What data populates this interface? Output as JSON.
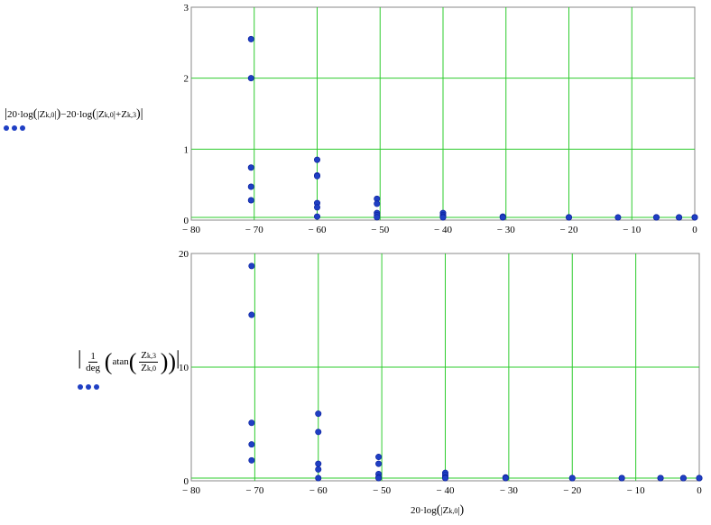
{
  "chart_data": [
    {
      "type": "scatter",
      "title": "",
      "ylabel_text": {
        "p1": "20·log",
        "z1": "Z",
        "z1_sub": "k,0",
        "p2": "−20·log",
        "z2": "Z",
        "z2_sub": "k,0",
        "plus": "+",
        "z3": "Z",
        "z3_sub": "k,3"
      },
      "xlim": [
        -80,
        0
      ],
      "ylim": [
        0,
        3
      ],
      "xticks": [
        -80,
        -70,
        -60,
        -50,
        -40,
        -30,
        -20,
        -10,
        0
      ],
      "xtick_labels": [
        "− 80",
        "− 70",
        "− 60",
        "− 50",
        "− 40",
        "− 30",
        "− 20",
        "− 10",
        "0"
      ],
      "yticks": [
        0,
        1,
        2,
        3
      ],
      "ytick_labels": [
        "0",
        "1",
        "2",
        "3"
      ],
      "grid": true,
      "colors": {
        "grid": "#2ecc2e",
        "marker": "#1f3fc4",
        "frame": "#888888"
      },
      "x": [
        -70.5,
        -70.5,
        -70.5,
        -70.5,
        -70.5,
        -60,
        -60,
        -60,
        -60,
        -60,
        -60,
        -50.5,
        -50.5,
        -50.5,
        -50.5,
        -50.5,
        -40,
        -40,
        -40,
        -40,
        -30.5,
        -30.5,
        -20,
        -20,
        -12.2,
        -6.1,
        -6.1,
        -2.5,
        -2.5,
        0,
        0
      ],
      "y": [
        2.55,
        2.0,
        0.74,
        0.47,
        0.28,
        0.85,
        0.63,
        0.24,
        0.18,
        0.05,
        0.62,
        0.3,
        0.23,
        0.1,
        0.07,
        0.04,
        0.1,
        0.07,
        0.05,
        0.03,
        0.05,
        0.03,
        0.04,
        0.03,
        0.03,
        0.04,
        0.02,
        0.03,
        0.02,
        0.04,
        0.02
      ]
    },
    {
      "type": "scatter",
      "title": "",
      "ylabel_text": {
        "one": "1",
        "deg": "deg",
        "atan": "atan",
        "num": "Z",
        "num_sub": "k,3",
        "den": "Z",
        "den_sub": "k,0"
      },
      "xlabel_text": {
        "prefix": "20·log",
        "z": "Z",
        "z_sub": "k,0"
      },
      "xlim": [
        -80,
        0
      ],
      "ylim": [
        0,
        20
      ],
      "xticks": [
        -80,
        -70,
        -60,
        -50,
        -40,
        -30,
        -20,
        -10,
        0
      ],
      "xtick_labels": [
        "− 80",
        "− 70",
        "− 60",
        "− 50",
        "− 40",
        "− 30",
        "− 20",
        "− 10",
        "0"
      ],
      "yticks": [
        0,
        10,
        20
      ],
      "ytick_labels": [
        "0",
        "10",
        "20"
      ],
      "grid": true,
      "colors": {
        "grid": "#2ecc2e",
        "marker": "#1f3fc4",
        "frame": "#888888"
      },
      "x": [
        -70.5,
        -70.5,
        -70.5,
        -70.5,
        -70.5,
        -60,
        -60,
        -60,
        -60,
        -60,
        -50.5,
        -50.5,
        -50.5,
        -50.5,
        -50.5,
        -40,
        -40,
        -40,
        -40,
        -30.5,
        -30.5,
        -20,
        -20,
        -12.2,
        -12.2,
        -6.1,
        -6.1,
        -2.5,
        -2.5,
        0,
        0
      ],
      "y": [
        18.9,
        14.6,
        5.1,
        3.2,
        1.8,
        5.9,
        4.3,
        1.5,
        1.0,
        0.2,
        2.1,
        1.5,
        0.6,
        0.3,
        0.1,
        0.7,
        0.5,
        0.3,
        0.1,
        0.3,
        0.1,
        0.2,
        0.1,
        0.2,
        0.1,
        0.2,
        0.1,
        0.2,
        0.1,
        0.2,
        0.1
      ]
    }
  ]
}
